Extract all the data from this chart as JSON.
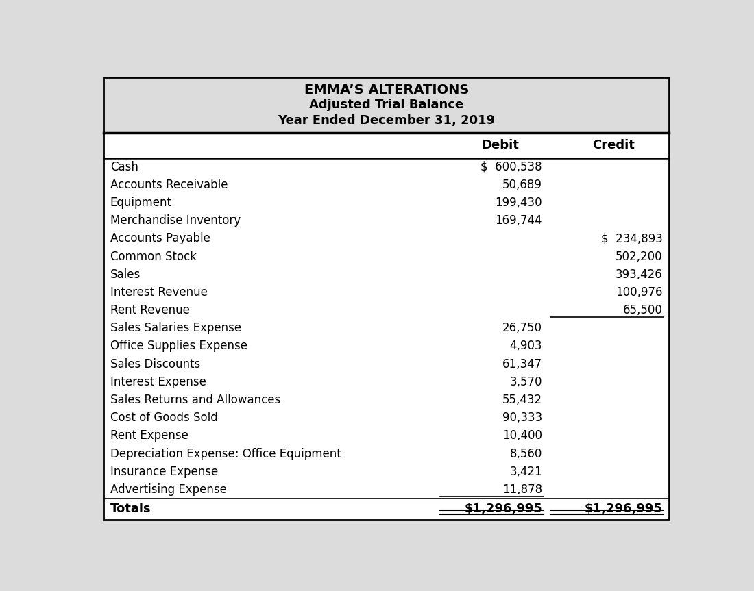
{
  "title_line1": "EMMA’S ALTERATIONS",
  "title_line2": "Adjusted Trial Balance",
  "title_line3": "Year Ended December 31, 2019",
  "header_bg": "#dcdcdc",
  "col_header_debit": "Debit",
  "col_header_credit": "Credit",
  "rows": [
    {
      "account": "Cash",
      "debit": "$  600,538",
      "credit": "",
      "ul_debit": false,
      "ul_credit": false
    },
    {
      "account": "Accounts Receivable",
      "debit": "50,689",
      "credit": "",
      "ul_debit": false,
      "ul_credit": false
    },
    {
      "account": "Equipment",
      "debit": "199,430",
      "credit": "",
      "ul_debit": false,
      "ul_credit": false
    },
    {
      "account": "Merchandise Inventory",
      "debit": "169,744",
      "credit": "",
      "ul_debit": false,
      "ul_credit": false
    },
    {
      "account": "Accounts Payable",
      "debit": "",
      "credit": "$  234,893",
      "ul_debit": false,
      "ul_credit": false
    },
    {
      "account": "Common Stock",
      "debit": "",
      "credit": "502,200",
      "ul_debit": false,
      "ul_credit": false
    },
    {
      "account": "Sales",
      "debit": "",
      "credit": "393,426",
      "ul_debit": false,
      "ul_credit": false
    },
    {
      "account": "Interest Revenue",
      "debit": "",
      "credit": "100,976",
      "ul_debit": false,
      "ul_credit": false
    },
    {
      "account": "Rent Revenue",
      "debit": "",
      "credit": "65,500",
      "ul_debit": false,
      "ul_credit": true
    },
    {
      "account": "Sales Salaries Expense",
      "debit": "26,750",
      "credit": "",
      "ul_debit": false,
      "ul_credit": false
    },
    {
      "account": "Office Supplies Expense",
      "debit": "4,903",
      "credit": "",
      "ul_debit": false,
      "ul_credit": false
    },
    {
      "account": "Sales Discounts",
      "debit": "61,347",
      "credit": "",
      "ul_debit": false,
      "ul_credit": false
    },
    {
      "account": "Interest Expense",
      "debit": "3,570",
      "credit": "",
      "ul_debit": false,
      "ul_credit": false
    },
    {
      "account": "Sales Returns and Allowances",
      "debit": "55,432",
      "credit": "",
      "ul_debit": false,
      "ul_credit": false
    },
    {
      "account": "Cost of Goods Sold",
      "debit": "90,333",
      "credit": "",
      "ul_debit": false,
      "ul_credit": false
    },
    {
      "account": "Rent Expense",
      "debit": "10,400",
      "credit": "",
      "ul_debit": false,
      "ul_credit": false
    },
    {
      "account": "Depreciation Expense: Office Equipment",
      "debit": "8,560",
      "credit": "",
      "ul_debit": false,
      "ul_credit": false
    },
    {
      "account": "Insurance Expense",
      "debit": "3,421",
      "credit": "",
      "ul_debit": false,
      "ul_credit": false
    },
    {
      "account": "Advertising Expense",
      "debit": "11,878",
      "credit": "",
      "ul_debit": true,
      "ul_credit": false
    }
  ],
  "totals_label": "Totals",
  "totals_debit": "$1,296,995",
  "totals_credit": "$1,296,995",
  "bg_color": "#ffffff",
  "outer_bg": "#dcdcdc",
  "font_size_title1": 14,
  "font_size_title23": 13,
  "font_size_header": 13,
  "font_size_body": 12,
  "font_size_totals": 13,
  "fig_width": 11.0,
  "fig_height": 8.63
}
